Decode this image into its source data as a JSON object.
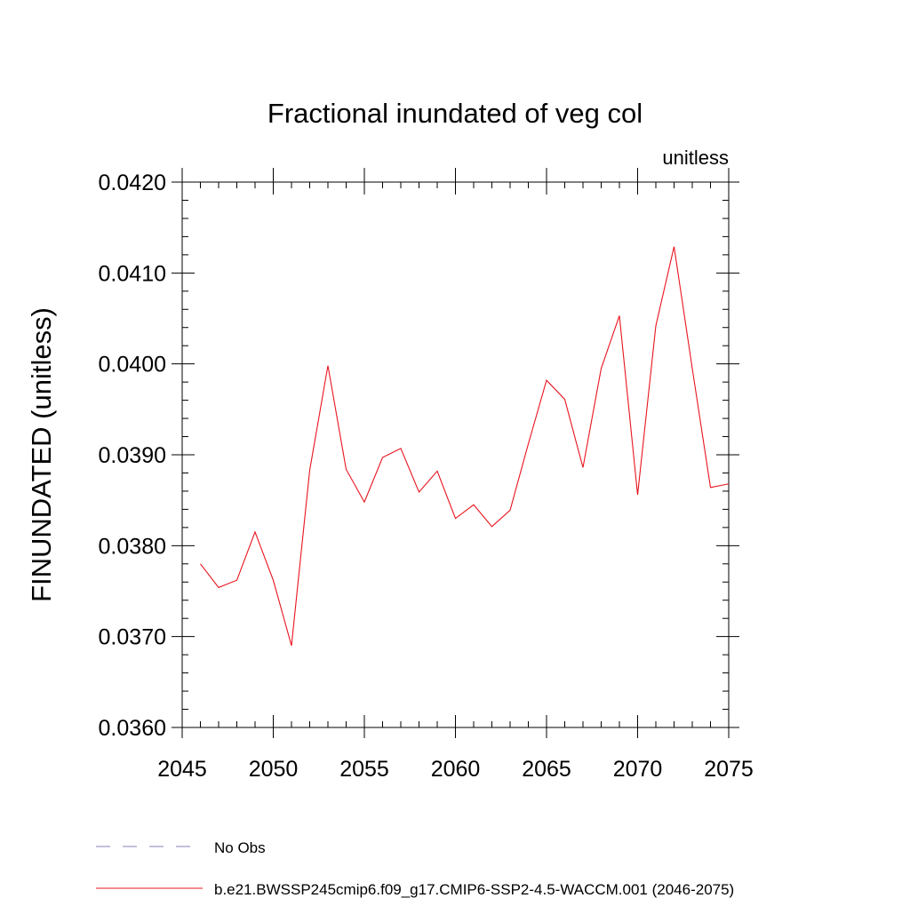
{
  "chart_data": {
    "type": "line",
    "title": "Fractional inundated of veg col",
    "subtitle": "unitless",
    "xlabel": "",
    "ylabel": "FINUNDATED  (unitless)",
    "xlim": [
      2045,
      2075
    ],
    "ylim": [
      0.036,
      0.042
    ],
    "x_ticks": [
      2045,
      2050,
      2055,
      2060,
      2065,
      2070,
      2075
    ],
    "x_tick_labels": [
      "2045",
      "2050",
      "2055",
      "2060",
      "2065",
      "2070",
      "2075"
    ],
    "y_ticks": [
      0.036,
      0.037,
      0.038,
      0.039,
      0.04,
      0.041,
      0.042
    ],
    "y_tick_labels": [
      "0.0360",
      "0.0370",
      "0.0380",
      "0.0390",
      "0.0400",
      "0.0410",
      "0.0420"
    ],
    "y_minor_step": 0.0002,
    "x_minor_step": 1,
    "grid": false,
    "legend_position": "bottom",
    "legend": [
      {
        "label": "No Obs",
        "color": "#8a7fb8",
        "dash": "dashed"
      },
      {
        "label": "b.e21.BWSSP245cmip6.f09_g17.CMIP6-SSP2-4.5-WACCM.001 (2046-2075)",
        "color": "#e8141e",
        "dash": "solid"
      }
    ],
    "series": [
      {
        "name": "b.e21.BWSSP245cmip6.f09_g17.CMIP6-SSP2-4.5-WACCM.001 (2046-2075)",
        "color": "#e8141e",
        "x": [
          2046,
          2047,
          2048,
          2049,
          2050,
          2051,
          2052,
          2053,
          2054,
          2055,
          2056,
          2057,
          2058,
          2059,
          2060,
          2061,
          2062,
          2063,
          2064,
          2065,
          2066,
          2067,
          2068,
          2069,
          2070,
          2071,
          2072,
          2073,
          2074,
          2075
        ],
        "values": [
          0.0378,
          0.03754,
          0.03762,
          0.03815,
          0.03762,
          0.0369,
          0.03883,
          0.03998,
          0.03884,
          0.03848,
          0.03897,
          0.03907,
          0.03859,
          0.03882,
          0.0383,
          0.03845,
          0.03821,
          0.03839,
          0.03912,
          0.03982,
          0.03961,
          0.03886,
          0.03995,
          0.04053,
          0.03856,
          0.04042,
          0.04129,
          0.03995,
          0.03864,
          0.03868
        ]
      }
    ]
  }
}
